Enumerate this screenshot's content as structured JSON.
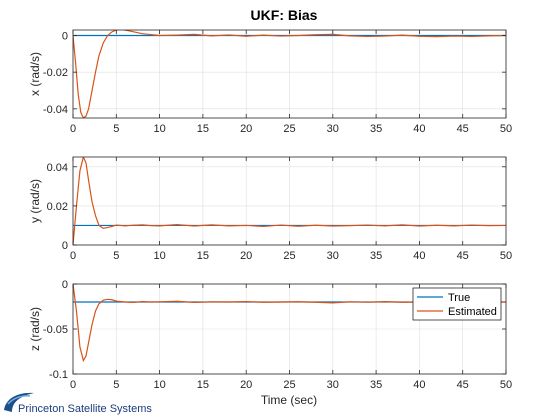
{
  "figure": {
    "title": "UKF: Bias",
    "xlabel": "Time (sec)",
    "logo_text": "Princeton Satellite Systems"
  },
  "colors": {
    "true": "#0072BD",
    "estimated": "#D95319",
    "axis": "#262626",
    "grid": "#dfdfdf"
  },
  "legend": {
    "location": "top-right of bottom subplot",
    "entries": [
      "True",
      "Estimated"
    ]
  },
  "chart_data": [
    {
      "type": "line",
      "ylabel": "x (rad/s)",
      "xlim": [
        0,
        50
      ],
      "ylim": [
        -0.045,
        0.003
      ],
      "xticks": [
        0,
        5,
        10,
        15,
        20,
        25,
        30,
        35,
        40,
        45,
        50
      ],
      "yticks": [
        -0.04,
        -0.02,
        0
      ],
      "ytick_labels": [
        "-0.04",
        "-0.02",
        "0"
      ],
      "grid": true,
      "series": [
        {
          "name": "True",
          "x": [
            0,
            50
          ],
          "y": [
            0,
            0
          ]
        },
        {
          "name": "Estimated",
          "x": [
            0,
            0.3,
            0.6,
            0.9,
            1.2,
            1.5,
            1.8,
            2.2,
            2.6,
            3.0,
            3.5,
            4.0,
            4.5,
            5.0,
            5.5,
            6.0,
            7.0,
            8.0,
            9.0,
            10,
            12,
            14,
            16,
            18,
            20,
            22,
            24,
            26,
            28,
            30,
            32,
            34,
            36,
            38,
            40,
            42,
            44,
            46,
            48,
            50
          ],
          "y": [
            0,
            -0.015,
            -0.032,
            -0.042,
            -0.045,
            -0.044,
            -0.04,
            -0.03,
            -0.02,
            -0.011,
            -0.004,
            0.0,
            0.002,
            0.003,
            0.0035,
            0.003,
            0.002,
            0.001,
            0.0005,
            0.0,
            0.0002,
            0.0006,
            -0.0002,
            0.0003,
            -0.0004,
            0.0002,
            -0.0003,
            0.0,
            0.0004,
            0.0006,
            -0.0002,
            -0.0005,
            -0.0003,
            0.0002,
            -0.0004,
            -0.0006,
            -0.0003,
            -0.0005,
            -0.0002,
            0.0
          ]
        }
      ]
    },
    {
      "type": "line",
      "ylabel": "y (rad/s)",
      "xlim": [
        0,
        50
      ],
      "ylim": [
        0,
        0.045
      ],
      "xticks": [
        0,
        5,
        10,
        15,
        20,
        25,
        30,
        35,
        40,
        45,
        50
      ],
      "yticks": [
        0,
        0.02,
        0.04
      ],
      "ytick_labels": [
        "0",
        "0.02",
        "0.04"
      ],
      "grid": true,
      "series": [
        {
          "name": "True",
          "x": [
            0,
            50
          ],
          "y": [
            0.01,
            0.01
          ]
        },
        {
          "name": "Estimated",
          "x": [
            0,
            0.4,
            0.8,
            1.2,
            1.5,
            1.8,
            2.2,
            2.6,
            3.0,
            3.5,
            4.0,
            4.5,
            5.0,
            6.0,
            7.0,
            8.0,
            9.0,
            10,
            12,
            14,
            16,
            18,
            20,
            22,
            24,
            26,
            28,
            30,
            32,
            34,
            36,
            38,
            40,
            42,
            44,
            46,
            48,
            50
          ],
          "y": [
            0,
            0.02,
            0.038,
            0.045,
            0.042,
            0.033,
            0.022,
            0.015,
            0.01,
            0.0085,
            0.009,
            0.0095,
            0.0102,
            0.0098,
            0.0101,
            0.0103,
            0.0099,
            0.0098,
            0.0104,
            0.0097,
            0.0103,
            0.0098,
            0.01,
            0.0095,
            0.0102,
            0.0096,
            0.0101,
            0.0097,
            0.0099,
            0.0102,
            0.0098,
            0.0103,
            0.0097,
            0.0101,
            0.0098,
            0.0102,
            0.0099,
            0.01
          ]
        }
      ]
    },
    {
      "type": "line",
      "ylabel": "z (rad/s)",
      "xlim": [
        0,
        50
      ],
      "ylim": [
        -0.1,
        0.0
      ],
      "xticks": [
        0,
        5,
        10,
        15,
        20,
        25,
        30,
        35,
        40,
        45,
        50
      ],
      "yticks": [
        -0.1,
        -0.05,
        0
      ],
      "ytick_labels": [
        "-0.1",
        "-0.05",
        "0"
      ],
      "grid": true,
      "series": [
        {
          "name": "True",
          "x": [
            0,
            50
          ],
          "y": [
            -0.02,
            -0.02
          ]
        },
        {
          "name": "Estimated",
          "x": [
            0,
            0.4,
            0.8,
            1.2,
            1.5,
            1.8,
            2.2,
            2.6,
            3.0,
            3.5,
            4.0,
            4.5,
            5.0,
            6.0,
            7.0,
            8.0,
            9.0,
            10,
            12,
            14,
            16,
            18,
            20,
            22,
            24,
            26,
            28,
            30,
            32,
            34,
            36,
            38,
            40,
            42,
            44,
            46,
            48,
            50
          ],
          "y": [
            0,
            -0.03,
            -0.07,
            -0.085,
            -0.08,
            -0.065,
            -0.045,
            -0.03,
            -0.022,
            -0.018,
            -0.017,
            -0.0175,
            -0.019,
            -0.02,
            -0.0205,
            -0.0195,
            -0.02,
            -0.0198,
            -0.0192,
            -0.0205,
            -0.0198,
            -0.02,
            -0.0195,
            -0.0203,
            -0.02,
            -0.0197,
            -0.0203,
            -0.021,
            -0.0198,
            -0.0202,
            -0.0196,
            -0.0203,
            -0.02,
            -0.0197,
            -0.0202,
            -0.0199,
            -0.02,
            -0.02
          ]
        }
      ]
    }
  ]
}
